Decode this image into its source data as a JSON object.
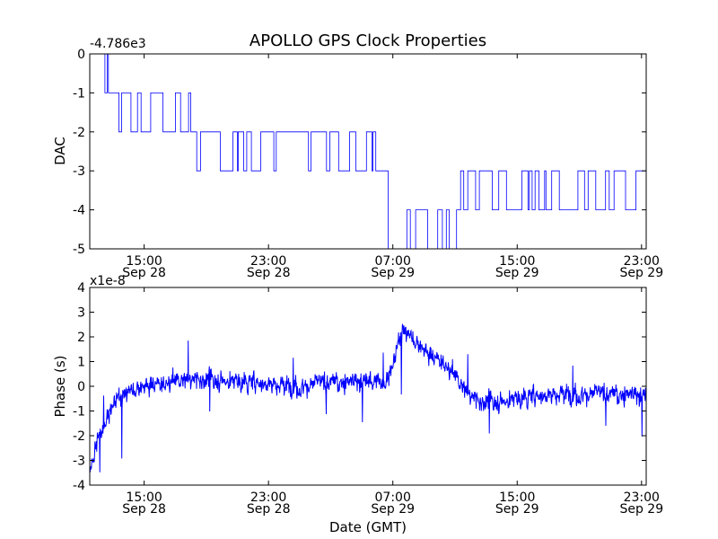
{
  "title": "APOLLO GPS Clock Properties",
  "chart_data": [
    {
      "type": "line",
      "name": "dac",
      "ylabel": "DAC",
      "offset_label": "-4.786e3",
      "ylim": [
        -5,
        0
      ],
      "yticks": [
        0,
        -1,
        -2,
        -3,
        -4,
        -5
      ],
      "ytick_labels": [
        "0",
        "-1",
        "-2",
        "-3",
        "-4",
        "-5"
      ],
      "xlim": [
        11.5,
        47.3
      ],
      "xticks": [
        {
          "x": 15,
          "line1": "15:00",
          "line2": "Sep 28"
        },
        {
          "x": 23,
          "line1": "23:00",
          "line2": "Sep 28"
        },
        {
          "x": 31,
          "line1": "07:00",
          "line2": "Sep 29"
        },
        {
          "x": 39,
          "line1": "15:00",
          "line2": "Sep 29"
        },
        {
          "x": 47,
          "line1": "23:00",
          "line2": "Sep 29"
        }
      ],
      "levels": [
        {
          "x0": 11.5,
          "x1": 12.7,
          "values": [
            0,
            -1
          ]
        },
        {
          "x0": 12.7,
          "x1": 14.8,
          "values": [
            -1,
            -2
          ]
        },
        {
          "x0": 14.8,
          "x1": 18.0,
          "values": [
            -2,
            -1
          ]
        },
        {
          "x0": 18.0,
          "x1": 27.2,
          "values": [
            -2,
            -3
          ]
        },
        {
          "x0": 27.2,
          "x1": 30.7,
          "values": [
            -3,
            -2
          ]
        },
        {
          "x0": 30.7,
          "x1": 35.1,
          "values": [
            -4,
            -5
          ]
        },
        {
          "x0": 35.1,
          "x1": 47.3,
          "values": [
            -3,
            -4
          ]
        }
      ]
    },
    {
      "type": "line",
      "name": "phase",
      "ylabel": "Phase (s)",
      "offset_label": "x1e-8",
      "xlabel": "Date (GMT)",
      "ylim": [
        -4,
        4
      ],
      "yticks": [
        4,
        3,
        2,
        1,
        0,
        -1,
        -2,
        -3,
        -4
      ],
      "ytick_labels": [
        "4",
        "3",
        "2",
        "1",
        "0",
        "-1",
        "-2",
        "-3",
        "-4"
      ],
      "xlim": [
        11.5,
        47.3
      ],
      "xticks": [
        {
          "x": 15,
          "line1": "15:00",
          "line2": "Sep 28"
        },
        {
          "x": 23,
          "line1": "23:00",
          "line2": "Sep 28"
        },
        {
          "x": 31,
          "line1": "07:00",
          "line2": "Sep 29"
        },
        {
          "x": 39,
          "line1": "15:00",
          "line2": "Sep 29"
        },
        {
          "x": 47,
          "line1": "23:00",
          "line2": "Sep 29"
        }
      ],
      "trend": [
        [
          11.5,
          -3.4
        ],
        [
          12.0,
          -2.2
        ],
        [
          12.6,
          -1.2
        ],
        [
          13.2,
          -0.6
        ],
        [
          14.0,
          -0.2
        ],
        [
          15.0,
          0.0
        ],
        [
          17.0,
          0.2
        ],
        [
          19.0,
          0.3
        ],
        [
          21.0,
          0.2
        ],
        [
          23.0,
          0.1
        ],
        [
          25.0,
          0.0
        ],
        [
          27.0,
          0.2
        ],
        [
          29.0,
          0.2
        ],
        [
          30.5,
          0.2
        ],
        [
          31.0,
          0.8
        ],
        [
          31.6,
          2.3
        ],
        [
          32.2,
          2.0
        ],
        [
          32.8,
          1.6
        ],
        [
          33.5,
          1.2
        ],
        [
          34.2,
          1.0
        ],
        [
          35.0,
          0.4
        ],
        [
          35.8,
          -0.3
        ],
        [
          36.5,
          -0.6
        ],
        [
          38.0,
          -0.6
        ],
        [
          40.0,
          -0.4
        ],
        [
          42.0,
          -0.3
        ],
        [
          44.0,
          -0.3
        ],
        [
          46.0,
          -0.3
        ],
        [
          47.3,
          -0.4
        ]
      ]
    }
  ]
}
